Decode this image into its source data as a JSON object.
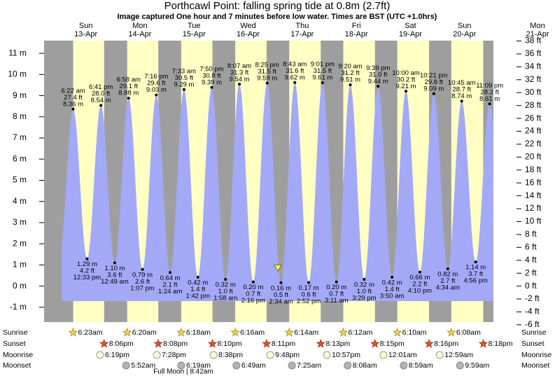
{
  "title": "Porthcawl Point: falling  spring tide at 0.8m (2.7ft)",
  "subtitle": "Image captured One hour and 7 minutes before low water. Times are BST (UTC +1.0hrs)",
  "chart_data": {
    "type": "tide",
    "ylim": [
      -1.7,
      11.6
    ],
    "yticks": [
      {
        "value": -1,
        "label": "-1 m"
      },
      {
        "value": 0,
        "label": "0 m"
      },
      {
        "value": 1,
        "label": "1 m"
      },
      {
        "value": 2,
        "label": "2 m"
      },
      {
        "value": 3,
        "label": "3 m"
      },
      {
        "value": 4,
        "label": "4 m"
      },
      {
        "value": 5,
        "label": "5 m"
      },
      {
        "value": 6,
        "label": "6 m"
      },
      {
        "value": 7,
        "label": "7 m"
      },
      {
        "value": 8,
        "label": "8 m"
      },
      {
        "value": 9,
        "label": "9 m"
      },
      {
        "value": 10,
        "label": "10 m"
      },
      {
        "value": 11,
        "label": "11 m"
      }
    ],
    "y2lim": [
      -5.58,
      38.06
    ],
    "y2ticks": [
      {
        "value": -6,
        "label": "-6 ft"
      },
      {
        "value": -4,
        "label": "-4 ft"
      },
      {
        "value": -2,
        "label": "-2 ft"
      },
      {
        "value": 0,
        "label": "0 ft"
      },
      {
        "value": 2,
        "label": "2 ft"
      },
      {
        "value": 4,
        "label": "4 ft"
      },
      {
        "value": 6,
        "label": "6 ft"
      },
      {
        "value": 8,
        "label": "8 ft"
      },
      {
        "value": 10,
        "label": "10 ft"
      },
      {
        "value": 12,
        "label": "12 ft"
      },
      {
        "value": 14,
        "label": "14 ft"
      },
      {
        "value": 16,
        "label": "16 ft"
      },
      {
        "value": 18,
        "label": "18 ft"
      },
      {
        "value": 20,
        "label": "20 ft"
      },
      {
        "value": 22,
        "label": "22 ft"
      },
      {
        "value": 24,
        "label": "24 ft"
      },
      {
        "value": 26,
        "label": "26 ft"
      },
      {
        "value": 28,
        "label": "28 ft"
      },
      {
        "value": 30,
        "label": "30 ft"
      },
      {
        "value": 32,
        "label": "32 ft"
      },
      {
        "value": 34,
        "label": "34 ft"
      },
      {
        "value": 36,
        "label": "36 ft"
      },
      {
        "value": 38,
        "label": "38 ft"
      }
    ],
    "current_level": 0.8,
    "colors": {
      "water": "#a3a9f7",
      "day": "#ffffc4",
      "night": "#9e9e9e",
      "day_labels": "#e00000"
    },
    "row_labels": {
      "sunrise": "Sunrise",
      "sunset": "Sunset",
      "moonrise": "Moonrise",
      "moonset": "Moonset"
    },
    "full_moon": "Full Moon | 8:42am",
    "days": [
      {
        "weekday": "Sun",
        "date": "13-Apr",
        "sunrise": "6:23am",
        "sunset": "8:06pm",
        "moonrise": "6:19pm",
        "moonset": null,
        "tides": [
          {
            "time": "6:22 am",
            "value": 8.36,
            "value_label": "8.36 m",
            "feet_label": "27.4 ft"
          },
          {
            "time": "12:33 pm",
            "value": 1.29,
            "value_label": "1.29 m",
            "feet_label": "4.2 ft"
          },
          {
            "time": "6:41 pm",
            "value": 8.54,
            "value_label": "8.54 m",
            "feet_label": "28.0 ft"
          }
        ]
      },
      {
        "weekday": "Mon",
        "date": "14-Apr",
        "sunrise": "6:20am",
        "sunset": "8:08pm",
        "moonrise": "7:28pm",
        "moonset": "5:52am",
        "tides": [
          {
            "time": "12:49 am",
            "value": 1.1,
            "value_label": "1.10 m",
            "feet_label": "3.6 ft"
          },
          {
            "time": "6:58 am",
            "value": 8.88,
            "value_label": "8.88 m",
            "feet_label": "29.1 ft"
          },
          {
            "time": "1:07 pm",
            "value": 0.79,
            "value_label": "0.79 m",
            "feet_label": "2.6 ft"
          },
          {
            "time": "7:16 pm",
            "value": 9.03,
            "value_label": "9.03 m",
            "feet_label": "29.6 ft"
          }
        ]
      },
      {
        "weekday": "Tue",
        "date": "15-Apr",
        "sunrise": "6:18am",
        "sunset": "8:10pm",
        "moonrise": "8:38pm",
        "moonset": "6:19am",
        "tides": [
          {
            "time": "1:24 am",
            "value": 0.64,
            "value_label": "0.64 m",
            "feet_label": "2.1 ft"
          },
          {
            "time": "7:33 am",
            "value": 9.29,
            "value_label": "9.29 m",
            "feet_label": "30.5 ft"
          },
          {
            "time": "1:42 pm",
            "value": 0.42,
            "value_label": "0.42 m",
            "feet_label": "1.4 ft"
          },
          {
            "time": "7:50 pm",
            "value": 9.39,
            "value_label": "9.39 m",
            "feet_label": "30.8 ft"
          }
        ]
      },
      {
        "weekday": "Wed",
        "date": "16-Apr",
        "sunrise": "6:16am",
        "sunset": "8:11pm",
        "moonrise": "9:48pm",
        "moonset": "6:49am",
        "tides": [
          {
            "time": "1:58 am",
            "value": 0.32,
            "value_label": "0.32 m",
            "feet_label": "1.0 ft"
          },
          {
            "time": "8:07 am",
            "value": 9.54,
            "value_label": "9.54 m",
            "feet_label": "31.3 ft"
          },
          {
            "time": "2:16 pm",
            "value": 0.2,
            "value_label": "0.20 m",
            "feet_label": "0.7 ft"
          },
          {
            "time": "8:25 pm",
            "value": 9.59,
            "value_label": "9.59 m",
            "feet_label": "31.5 ft"
          }
        ]
      },
      {
        "weekday": "Thu",
        "date": "17-Apr",
        "sunrise": "6:14am",
        "sunset": "8:13pm",
        "moonrise": "10:57pm",
        "moonset": "7:25am",
        "tides": [
          {
            "time": "2:34 am",
            "value": 0.16,
            "value_label": "0.16 m",
            "feet_label": "0.5 ft"
          },
          {
            "time": "8:43 am",
            "value": 9.62,
            "value_label": "9.62 m",
            "feet_label": "31.6 ft"
          },
          {
            "time": "2:52 pm",
            "value": 0.17,
            "value_label": "0.17 m",
            "feet_label": "0.6 ft"
          },
          {
            "time": "9:01 pm",
            "value": 9.61,
            "value_label": "9.61 m",
            "feet_label": "31.5 ft"
          }
        ]
      },
      {
        "weekday": "Fri",
        "date": "18-Apr",
        "sunrise": "6:12am",
        "sunset": "8:15pm",
        "moonrise": null,
        "moonset": "8:08am",
        "tides": [
          {
            "time": "3:11 am",
            "value": 0.2,
            "value_label": "0.20 m",
            "feet_label": "0.7 ft"
          },
          {
            "time": "9:20 am",
            "value": 9.51,
            "value_label": "9.51 m",
            "feet_label": "31.2 ft"
          },
          {
            "time": "3:29 pm",
            "value": 0.32,
            "value_label": "0.32 m",
            "feet_label": "1.0 ft"
          },
          {
            "time": "9:39 pm",
            "value": 9.44,
            "value_label": "9.44 m",
            "feet_label": "31.0 ft"
          }
        ]
      },
      {
        "weekday": "Sat",
        "date": "19-Apr",
        "sunrise": "6:10am",
        "sunset": "8:16pm",
        "moonrise": "12:01am",
        "moonset": "8:59am",
        "tides": [
          {
            "time": "3:50 am",
            "value": 0.42,
            "value_label": "0.42 m",
            "feet_label": "1.4 ft"
          },
          {
            "time": "10:00 am",
            "value": 9.21,
            "value_label": "9.21 m",
            "feet_label": "30.2 ft"
          },
          {
            "time": "4:10 pm",
            "value": 0.66,
            "value_label": "0.66 m",
            "feet_label": "2.2 ft"
          },
          {
            "time": "10:21 pm",
            "value": 9.09,
            "value_label": "9.09 m",
            "feet_label": "29.8 ft"
          }
        ]
      },
      {
        "weekday": "Sun",
        "date": "20-Apr",
        "sunrise": "6:08am",
        "sunset": "8:18pm",
        "moonrise": "12:59am",
        "moonset": "9:59am",
        "tides": [
          {
            "time": "4:34 am",
            "value": 0.82,
            "value_label": "0.82 m",
            "feet_label": "2.7 ft"
          },
          {
            "time": "10:45 am",
            "value": 8.74,
            "value_label": "8.74 m",
            "feet_label": "28.7 ft"
          },
          {
            "time": "4:56 pm",
            "value": 1.14,
            "value_label": "1.14 m",
            "feet_label": "3.7 ft"
          },
          {
            "time": "11:09 pm",
            "value": 8.61,
            "value_label": "8.61 m",
            "feet_label": "28.2 ft"
          }
        ]
      },
      {
        "weekday": "Mon",
        "date": "21-Apr"
      }
    ]
  }
}
